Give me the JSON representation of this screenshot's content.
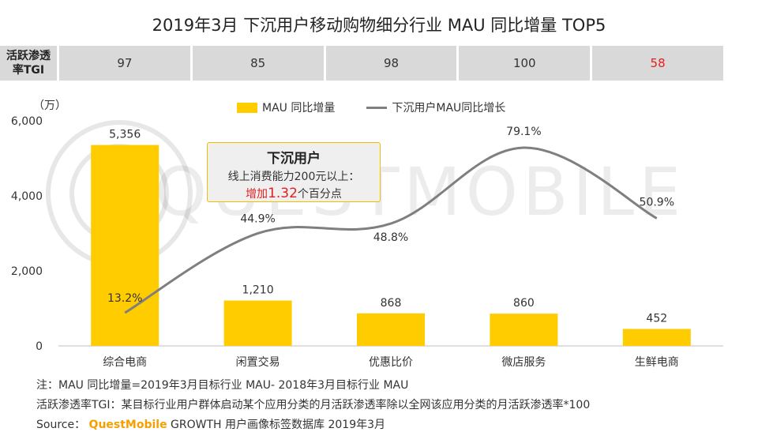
{
  "title": "2019年3月 下沉用户移动购物细分行业 MAU 同比增量 TOP5",
  "tgi": {
    "label_line1": "活跃渗透",
    "label_line2": "率TGI",
    "values": [
      "97",
      "85",
      "98",
      "100",
      "58"
    ]
  },
  "legend": {
    "bar_label": "MAU 同比增量",
    "line_label": "下沉用户MAU同比增长"
  },
  "callout": {
    "title": "下沉用户",
    "line1": "线上消费能力200元以上：",
    "line2_prefix": "增加",
    "line2_number": "1.32",
    "line2_suffix": "个百分点"
  },
  "watermark": "QUESTMOBILE",
  "notes": {
    "note1": "注：MAU 同比增量=2019年3月目标行业 MAU- 2018年3月目标行业 MAU",
    "note2": "活跃渗透率TGI：某目标行业用户群体启动某个应用分类的月活跃渗透率除以全网该应用分类的月活跃渗透率*100",
    "source_prefix": "Source：",
    "source_brand": "QuestMobile",
    "source_suffix": " GROWTH 用户画像标签数据库 2019年3月"
  },
  "colors": {
    "bar": "#ffcc00",
    "line": "#7f7f7f",
    "highlight": "#e02020"
  },
  "chart_data": {
    "type": "bar",
    "title": "2019年3月 下沉用户移动购物细分行业 MAU 同比增量 TOP5",
    "unit_label": "（万）",
    "categories": [
      "综合电商",
      "闲置交易",
      "优惠比价",
      "微店服务",
      "生鲜电商"
    ],
    "ylim": [
      0,
      6000
    ],
    "yticks": [
      0,
      2000,
      4000,
      6000
    ],
    "ytick_labels": [
      "0",
      "2,000",
      "4,000",
      "6,000"
    ],
    "series": [
      {
        "name": "MAU 同比增量",
        "type": "bar",
        "values": [
          5356,
          1210,
          868,
          860,
          452
        ],
        "labels": [
          "5,356",
          "1,210",
          "868",
          "860",
          "452"
        ]
      },
      {
        "name": "下沉用户MAU同比增长",
        "type": "line",
        "smooth": true,
        "values": [
          13.2,
          44.9,
          48.8,
          79.1,
          50.9
        ],
        "labels": [
          "13.2%",
          "44.9%",
          "48.8%",
          "79.1%",
          "50.9%"
        ]
      }
    ]
  }
}
